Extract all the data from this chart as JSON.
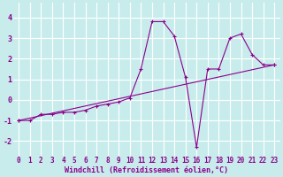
{
  "title": "",
  "xlabel": "Windchill (Refroidissement éolien,°C)",
  "background_color": "#c8ecec",
  "grid_color": "#ffffff",
  "line_color": "#8b008b",
  "xlim": [
    -0.5,
    23.5
  ],
  "ylim": [
    -2.7,
    4.7
  ],
  "yticks": [
    -2,
    -1,
    0,
    1,
    2,
    3,
    4
  ],
  "xticks": [
    0,
    1,
    2,
    3,
    4,
    5,
    6,
    7,
    8,
    9,
    10,
    11,
    12,
    13,
    14,
    15,
    16,
    17,
    18,
    19,
    20,
    21,
    22,
    23
  ],
  "series1_x": [
    0,
    1,
    2,
    3,
    4,
    5,
    6,
    7,
    8,
    9,
    10,
    11,
    12,
    13,
    14,
    15,
    16,
    17,
    18,
    19,
    20,
    21,
    22,
    23
  ],
  "series1_y": [
    -1.0,
    -1.0,
    -0.7,
    -0.7,
    -0.6,
    -0.6,
    -0.5,
    -0.3,
    -0.2,
    -0.1,
    0.1,
    1.5,
    3.8,
    3.8,
    3.1,
    1.1,
    -2.3,
    1.5,
    1.5,
    3.0,
    3.2,
    2.2,
    1.7,
    1.7
  ],
  "series2_x": [
    0,
    23
  ],
  "series2_y": [
    -1.0,
    1.7
  ],
  "tick_fontsize": 5.5,
  "xlabel_fontsize": 6.0
}
